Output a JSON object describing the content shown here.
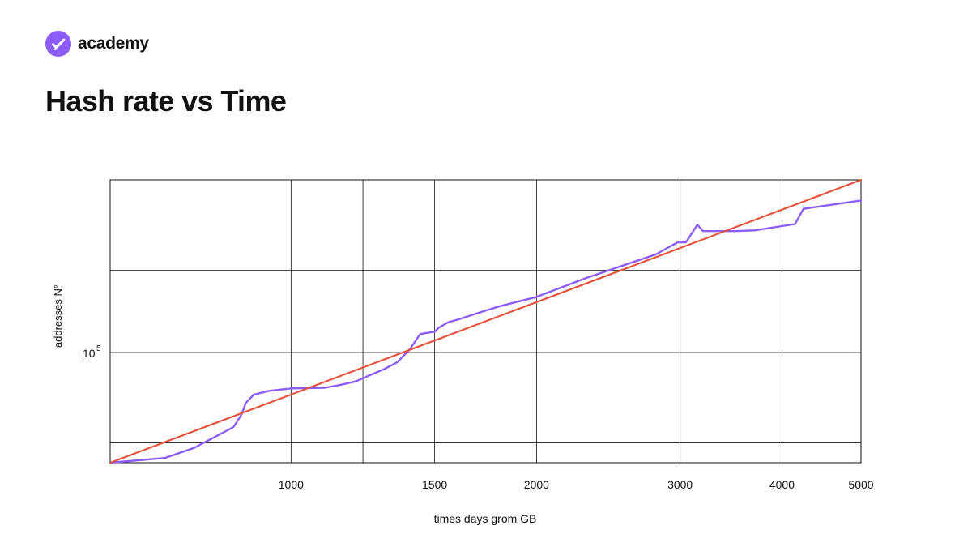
{
  "brand": {
    "name": "academy",
    "logo_icon": "check-badge-icon",
    "logo_color": "#8b5cf6"
  },
  "page": {
    "title": "Hash rate vs Time"
  },
  "chart_data": {
    "type": "line",
    "title": "Hash rate vs Time",
    "xlabel": "times days grom GB",
    "ylabel": "addresses N°",
    "x_scale": "log",
    "y_scale": "log",
    "xlim": [
      600,
      5000
    ],
    "ylim": [
      0.23,
      10
    ],
    "x_ticks": [
      1000,
      1500,
      2000,
      3000,
      4000,
      5000
    ],
    "x_tick_labels": [
      "1000",
      "1500",
      "2000",
      "3000",
      "4000",
      "5000"
    ],
    "y_tick_label": {
      "base": "10",
      "exponent": "5",
      "value": 1
    },
    "grid": true,
    "colors": {
      "grid": "#111111",
      "axes": "#111111",
      "fit": "#e5533d",
      "data": "#8b5cf6"
    },
    "series": [
      {
        "style": "data",
        "color": "#8b5cf6",
        "points": [
          [
            600,
            0.23
          ],
          [
            700,
            0.245
          ],
          [
            760,
            0.28
          ],
          [
            850,
            0.37
          ],
          [
            870,
            0.44
          ],
          [
            880,
            0.51
          ],
          [
            900,
            0.57
          ],
          [
            940,
            0.6
          ],
          [
            1000,
            0.62
          ],
          [
            1100,
            0.625
          ],
          [
            1150,
            0.65
          ],
          [
            1200,
            0.68
          ],
          [
            1250,
            0.74
          ],
          [
            1300,
            0.8
          ],
          [
            1350,
            0.88
          ],
          [
            1400,
            1.05
          ],
          [
            1440,
            1.28
          ],
          [
            1500,
            1.32
          ],
          [
            1520,
            1.4
          ],
          [
            1560,
            1.5
          ],
          [
            1600,
            1.55
          ],
          [
            1700,
            1.7
          ],
          [
            1800,
            1.85
          ],
          [
            2000,
            2.1
          ],
          [
            2300,
            2.7
          ],
          [
            2800,
            3.7
          ],
          [
            2980,
            4.35
          ],
          [
            3050,
            4.35
          ],
          [
            3150,
            5.5
          ],
          [
            3200,
            5.05
          ],
          [
            3500,
            5.05
          ],
          [
            3700,
            5.1
          ],
          [
            4000,
            5.4
          ],
          [
            4150,
            5.55
          ],
          [
            4250,
            6.8
          ],
          [
            5000,
            7.6
          ]
        ]
      },
      {
        "style": "fit",
        "color": "#e5533d",
        "points": [
          [
            600,
            0.23
          ],
          [
            5000,
            10
          ]
        ]
      }
    ]
  }
}
